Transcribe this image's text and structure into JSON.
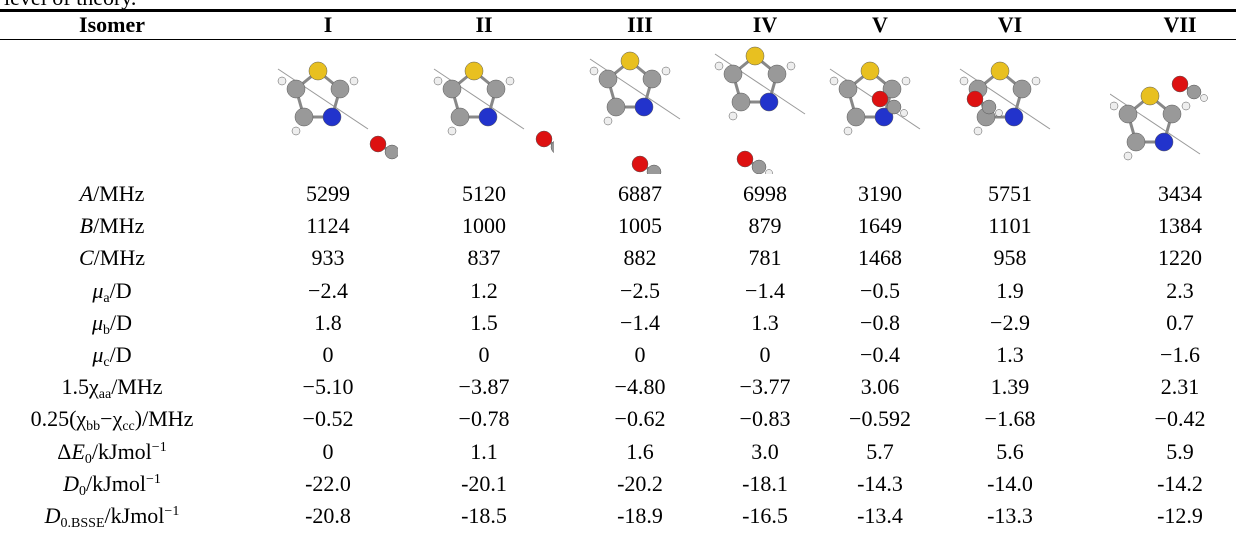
{
  "caption": "level of theory.",
  "table": {
    "header": [
      "Isomer",
      "I",
      "II",
      "III",
      "IV",
      "V",
      "VI",
      "VII"
    ],
    "rows": [
      {
        "label": [
          "A",
          "/MHz"
        ],
        "values": [
          "5299",
          "5120",
          "6887",
          "6998",
          "3190",
          "5751",
          "3434"
        ]
      },
      {
        "label": [
          "B",
          "/MHz"
        ],
        "values": [
          "1124",
          "1000",
          "1005",
          "879",
          "1649",
          "1101",
          "1384"
        ]
      },
      {
        "label": [
          "C",
          "/MHz"
        ],
        "values": [
          "933",
          "837",
          "882",
          "781",
          "1468",
          "958",
          "1220"
        ]
      },
      {
        "label": [
          "μ",
          "a",
          "/D"
        ],
        "values": [
          "−2.4",
          "1.2",
          "−2.5",
          "−1.4",
          "−0.5",
          "1.9",
          "2.3"
        ]
      },
      {
        "label": [
          "μ",
          "b",
          "/D"
        ],
        "values": [
          "1.8",
          "1.5",
          "−1.4",
          "1.3",
          "−0.8",
          "−2.9",
          "0.7"
        ]
      },
      {
        "label": [
          "μ",
          "c",
          "/D"
        ],
        "values": [
          "0",
          "0",
          "0",
          "0",
          "−0.4",
          "1.3",
          "−1.6"
        ]
      },
      {
        "label": [
          "1.5χ",
          "aa",
          "/MHz"
        ],
        "values": [
          "−5.10",
          "−3.87",
          "−4.80",
          "−3.77",
          "3.06",
          "1.39",
          "2.31"
        ]
      },
      {
        "label": [
          "0.25(χ",
          "bb",
          "−χ",
          "cc",
          ")/MHz"
        ],
        "values": [
          "−0.52",
          "−0.78",
          "−0.62",
          "−0.83",
          "−0.592",
          "−1.68",
          "−0.42"
        ]
      },
      {
        "label": [
          "Δ",
          "E",
          "0",
          "/kJmol",
          "−1"
        ],
        "values": [
          "0",
          "1.1",
          "1.6",
          "3.0",
          "5.7",
          "5.6",
          "5.9"
        ]
      },
      {
        "label": [
          "D",
          "0",
          "/kJmol",
          "−1"
        ],
        "values": [
          "-22.0",
          "-20.1",
          "-20.2",
          "-18.1",
          "-14.3",
          "-14.0",
          "-14.2"
        ]
      },
      {
        "label": [
          "D",
          "0.BSSE",
          "/kJmol",
          "−1"
        ],
        "values": [
          "-20.8",
          "-18.5",
          "-18.9",
          "-16.5",
          "-13.4",
          "-13.3",
          "-12.9"
        ]
      }
    ]
  }
}
